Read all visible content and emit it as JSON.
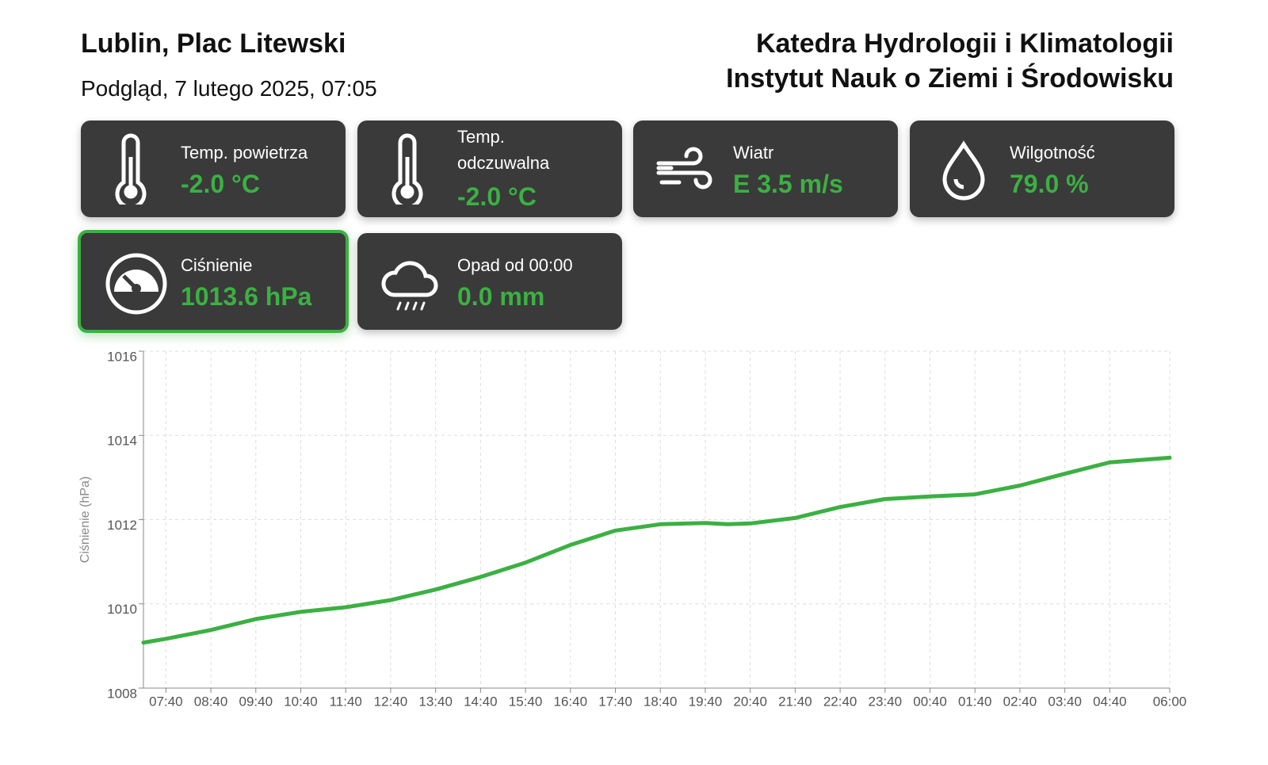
{
  "header": {
    "title": "Lublin, Plac Litewski",
    "subtitle": "Podgląd, 7 lutego 2025, 07:05",
    "org_line1": "Katedra Hydrologii i Klimatologii",
    "org_line2": "Instytut Nauk o Ziemi i Środowisku"
  },
  "cards": [
    {
      "label": "Temp. powietrza",
      "value": "-2.0 °C"
    },
    {
      "label": "Temp. odczuwalna",
      "value": "-2.0 °C"
    },
    {
      "label": "Wiatr",
      "value": "E 3.5 m/s"
    },
    {
      "label": "Wilgotność",
      "value": "79.0 %"
    },
    {
      "label": "Ciśnienie",
      "value": "1013.6 hPa"
    },
    {
      "label": "Opad od 00:00",
      "value": "0.0 mm"
    }
  ],
  "chart_data": {
    "type": "line",
    "y_label": "Ciśnienie (hPa)",
    "color": "#3cb043",
    "grid": true,
    "x": [
      "07:10",
      "07:40",
      "08:40",
      "09:40",
      "10:40",
      "11:40",
      "12:40",
      "13:40",
      "14:40",
      "15:40",
      "16:40",
      "17:40",
      "18:40",
      "19:40",
      "20:10",
      "20:40",
      "21:40",
      "22:40",
      "23:40",
      "00:40",
      "01:40",
      "02:40",
      "03:40",
      "04:40",
      "06:00"
    ],
    "values": [
      1009.08,
      1009.17,
      1009.38,
      1009.64,
      1009.81,
      1009.92,
      1010.09,
      1010.34,
      1010.64,
      1010.98,
      1011.4,
      1011.74,
      1011.89,
      1011.92,
      1011.89,
      1011.91,
      1012.04,
      1012.3,
      1012.49,
      1012.55,
      1012.6,
      1012.81,
      1013.09,
      1013.36,
      1013.47
    ],
    "xlim": [
      "07:10",
      "06:00"
    ],
    "xticks": [
      "07:40",
      "08:40",
      "09:40",
      "10:40",
      "11:40",
      "12:40",
      "13:40",
      "14:40",
      "15:40",
      "16:40",
      "17:40",
      "18:40",
      "19:40",
      "20:40",
      "21:40",
      "22:40",
      "23:40",
      "00:40",
      "01:40",
      "02:40",
      "03:40",
      "04:40",
      "06:00"
    ],
    "ylim": [
      1008,
      1016
    ],
    "yticks": [
      1008,
      1010,
      1012,
      1014,
      1016
    ]
  }
}
